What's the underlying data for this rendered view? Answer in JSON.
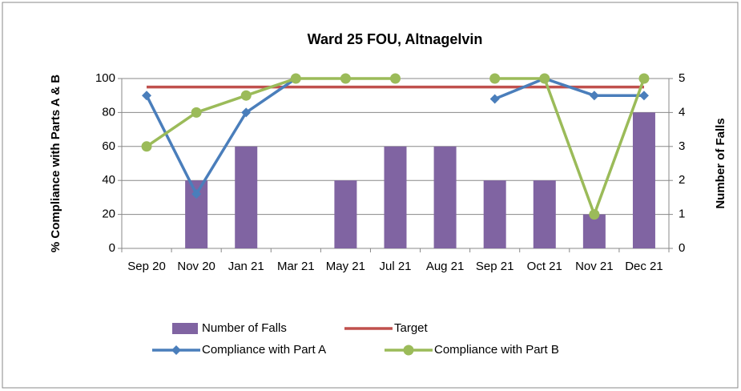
{
  "chart_data": {
    "type": "bar",
    "title": "Ward 25 FOU, Altnagelvin",
    "y_label": "% Compliance with Parts A & B",
    "y2_label": "Number of Falls",
    "categories": [
      "Sep 20",
      "Nov 20",
      "Jan 21",
      "Mar 21",
      "May 21",
      "Jul 21",
      "Aug 21",
      "Sep 21",
      "Oct 21",
      "Nov 21",
      "Dec 21"
    ],
    "ylim": [
      0,
      100
    ],
    "yticks": [
      0,
      20,
      40,
      60,
      80,
      100
    ],
    "y2lim": [
      0,
      5
    ],
    "y2ticks": [
      0,
      1,
      2,
      3,
      4,
      5
    ],
    "grid": true,
    "legend": "bottom",
    "series": [
      {
        "name": "Number of Falls",
        "mark": "bar",
        "axis": "y2",
        "color": "#8064a2",
        "values": [
          0,
          2,
          3,
          0,
          2,
          3,
          3,
          2,
          2,
          1,
          4
        ]
      },
      {
        "name": "Target",
        "mark": "line",
        "color": "#c0504d",
        "values": [
          95,
          95,
          95,
          95,
          95,
          95,
          95,
          95,
          95,
          95,
          95
        ]
      },
      {
        "name": "Compliance with Part A",
        "mark": "line",
        "marker": "diamond",
        "color": "#4a7ebb",
        "values": [
          90,
          32,
          80,
          100,
          null,
          null,
          null,
          88,
          100,
          90,
          90
        ]
      },
      {
        "name": "Compliance with Part B",
        "mark": "line",
        "marker": "circle",
        "color": "#9bbb59",
        "values": [
          60,
          80,
          90,
          100,
          100,
          100,
          null,
          100,
          100,
          20,
          100
        ]
      }
    ]
  }
}
